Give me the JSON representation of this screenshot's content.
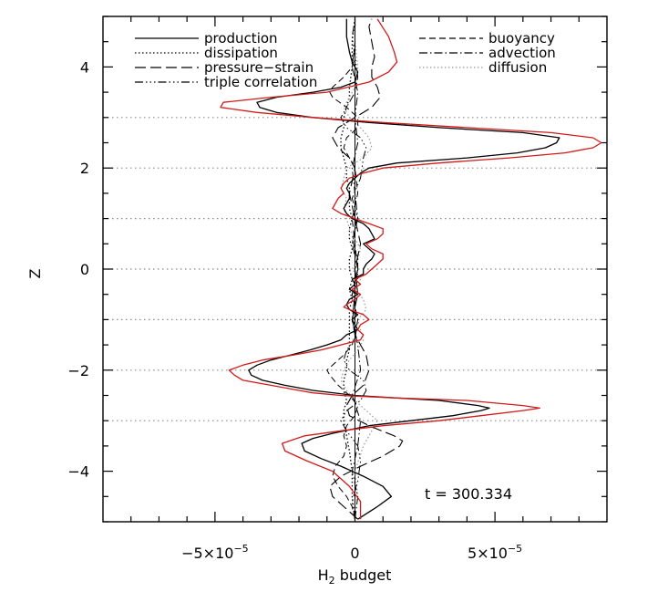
{
  "chart_data": {
    "type": "line",
    "xlabel_main": "H",
    "xlabel_sub": "2",
    "xlabel_rest": " budget",
    "ylabel": "Z",
    "xlim": [
      -9e-05,
      9e-05
    ],
    "ylim": [
      -5,
      5
    ],
    "xticks": [
      {
        "value": -5e-05,
        "mant": "−5×10",
        "exp": "−5"
      },
      {
        "value": 0,
        "mant": "0",
        "exp": ""
      },
      {
        "value": 5e-05,
        "mant": "5×10",
        "exp": "−5"
      }
    ],
    "yticks": [
      {
        "value": -4,
        "label": "−4"
      },
      {
        "value": -2,
        "label": "−2"
      },
      {
        "value": 0,
        "label": "0"
      },
      {
        "value": 2,
        "label": "2"
      },
      {
        "value": 4,
        "label": "4"
      }
    ],
    "hlines": [
      -3,
      -2,
      -1,
      0,
      1,
      2,
      3
    ],
    "annotation": "t  =  300.334",
    "legend": [
      {
        "name": "production",
        "dash": "",
        "color": "#000000"
      },
      {
        "name": "dissipation",
        "dash": "1.5,2.5",
        "color": "#000000"
      },
      {
        "name": "pressure−strain",
        "dash": "12,5",
        "color": "#000000"
      },
      {
        "name": "triple correlation",
        "dash": "9,3,1.5,3,1.5,3,1.5,3",
        "color": "#000000"
      },
      {
        "name": "buoyancy",
        "dash": "7,4",
        "color": "#000000"
      },
      {
        "name": "advection",
        "dash": "9,3,1.5,3",
        "color": "#000000"
      },
      {
        "name": "diffusion",
        "dash": "1.5,2.5",
        "color": "#999999"
      }
    ],
    "series": [
      {
        "key": "total",
        "color": "#d11a1a",
        "dash": "",
        "width": 1.3,
        "z": [
          -4.95,
          -4.6,
          -4.3,
          -4.0,
          -3.8,
          -3.6,
          -3.45,
          -3.3,
          -3.2,
          -3.1,
          -3.0,
          -2.9,
          -2.8,
          -2.75,
          -2.7,
          -2.6,
          -2.55,
          -2.5,
          -2.45,
          -2.4,
          -2.3,
          -2.2,
          -2.1,
          -2.0,
          -1.9,
          -1.8,
          -1.7,
          -1.6,
          -1.5,
          -1.4,
          -1.3,
          -1.2,
          -1.1,
          -1.0,
          -0.9,
          -0.8,
          -0.75,
          -0.7,
          -0.6,
          -0.5,
          -0.4,
          -0.3,
          -0.2,
          -0.1,
          0.0,
          0.1,
          0.2,
          0.3,
          0.4,
          0.5,
          0.6,
          0.7,
          0.8,
          0.9,
          1.0,
          1.1,
          1.2,
          1.3,
          1.4,
          1.5,
          1.6,
          1.7,
          1.8,
          1.9,
          2.0,
          2.1,
          2.2,
          2.3,
          2.4,
          2.5,
          2.6,
          2.7,
          2.8,
          2.9,
          3.0,
          3.1,
          3.2,
          3.3,
          3.4,
          3.5,
          3.7,
          3.9,
          4.1,
          4.3,
          4.6,
          4.95
        ],
        "v": [
          2e-06,
          2e-06,
          -2e-06,
          -8e-06,
          -1.7e-05,
          -2.5e-05,
          -2.6e-05,
          -1.8e-05,
          -5e-06,
          1e-05,
          3e-05,
          4.5e-05,
          6e-05,
          6.6e-05,
          6e-05,
          4e-05,
          1.5e-05,
          -5e-06,
          -1.5e-05,
          -2e-05,
          -3e-05,
          -4e-05,
          -4.3e-05,
          -4.5e-05,
          -4e-05,
          -3.3e-05,
          -2.2e-05,
          -1.2e-05,
          -5e-06,
          2e-06,
          3e-06,
          1e-06,
          2e-06,
          5e-06,
          3e-06,
          -2e-06,
          -4e-06,
          -3e-06,
          0.0,
          2e-06,
          -1e-06,
          2e-06,
          0.0,
          4e-06,
          6e-06,
          8e-06,
          1e-05,
          1e-05,
          6e-06,
          4e-06,
          8e-06,
          1e-05,
          1e-05,
          5e-06,
          0.0,
          -5e-06,
          -8e-06,
          -7e-06,
          -6e-06,
          -4e-06,
          -5e-06,
          -4e-06,
          -2e-06,
          3e-06,
          1e-05,
          3e-05,
          5.5e-05,
          7.5e-05,
          8.5e-05,
          8.8e-05,
          8.5e-05,
          7e-05,
          4e-05,
          1e-05,
          -1.5e-05,
          -3.5e-05,
          -4.8e-05,
          -4.7e-05,
          -3e-05,
          -1e-05,
          5e-06,
          1.2e-05,
          1.5e-05,
          1.4e-05,
          1.2e-05,
          8e-06
        ]
      },
      {
        "key": "production",
        "color": "#000000",
        "dash": "",
        "width": 1.3,
        "z": [
          -4.95,
          -4.7,
          -4.5,
          -4.3,
          -4.1,
          -3.9,
          -3.75,
          -3.6,
          -3.45,
          -3.35,
          -3.25,
          -3.1,
          -3.0,
          -2.9,
          -2.8,
          -2.75,
          -2.7,
          -2.6,
          -2.55,
          -2.5,
          -2.4,
          -2.3,
          -2.2,
          -2.1,
          -2.0,
          -1.9,
          -1.8,
          -1.7,
          -1.6,
          -1.5,
          -1.4,
          -1.3,
          -1.2,
          -1.1,
          -1.0,
          -0.9,
          -0.8,
          -0.7,
          -0.6,
          -0.5,
          -0.4,
          -0.3,
          -0.2,
          -0.1,
          0.0,
          0.1,
          0.2,
          0.3,
          0.4,
          0.5,
          0.6,
          0.7,
          0.8,
          0.9,
          1.0,
          1.1,
          1.2,
          1.3,
          1.4,
          1.5,
          1.6,
          1.7,
          1.8,
          1.9,
          2.0,
          2.1,
          2.2,
          2.3,
          2.4,
          2.5,
          2.6,
          2.7,
          2.8,
          2.9,
          3.0,
          3.1,
          3.2,
          3.3,
          3.4,
          3.5,
          3.6,
          3.7,
          3.9,
          4.1,
          4.3,
          4.6,
          4.95
        ],
        "v": [
          1e-06,
          8e-06,
          1.3e-05,
          1e-05,
          3e-06,
          -5e-06,
          -1.2e-05,
          -1.8e-05,
          -1.9e-05,
          -1.5e-05,
          -8e-06,
          5e-06,
          2e-05,
          3.5e-05,
          4.5e-05,
          4.8e-05,
          4.4e-05,
          3e-05,
          1.5e-05,
          0.0,
          -1.5e-05,
          -2.5e-05,
          -3.3e-05,
          -3.7e-05,
          -3.8e-05,
          -3.5e-05,
          -3e-05,
          -2.3e-05,
          -1.6e-05,
          -1e-05,
          -5e-06,
          -3e-06,
          1e-06,
          0.0,
          -1e-06,
          1e-06,
          -2e-06,
          -3e-06,
          -2e-06,
          1e-06,
          -2e-06,
          0.0,
          -1e-06,
          3e-06,
          3e-06,
          4e-06,
          6e-06,
          7e-06,
          5e-06,
          3e-06,
          7e-06,
          6e-06,
          5e-06,
          3e-06,
          -1e-06,
          -3e-06,
          -4e-06,
          -3e-06,
          -2e-06,
          -2e-06,
          -3e-06,
          -2e-06,
          0.0,
          2e-06,
          5e-06,
          1.5e-05,
          4e-05,
          5.8e-05,
          6.8e-05,
          7.2e-05,
          7.3e-05,
          6e-05,
          3e-05,
          5e-06,
          -1.5e-05,
          -2.8e-05,
          -3.4e-05,
          -3.5e-05,
          -2.8e-05,
          -1.5e-05,
          -5e-06,
          0.0,
          1e-06,
          -1e-06,
          -2e-06,
          -3e-06,
          -3e-06
        ]
      },
      {
        "key": "pressure-strain",
        "color": "#000000",
        "dash": "12,5",
        "width": 1.1,
        "z": [
          -4.95,
          -4.7,
          -4.5,
          -4.3,
          -4.1,
          -3.9,
          -3.7,
          -3.5,
          -3.4,
          -3.3,
          -3.1,
          -2.9,
          -2.7,
          -2.5,
          -2.3,
          -2.0,
          -1.7,
          -1.5,
          -1.3,
          -1.0,
          -0.5,
          0.0,
          0.5,
          1.0,
          1.5,
          2.0,
          2.2,
          2.4,
          2.6,
          2.8,
          3.0,
          3.2,
          3.4,
          3.6,
          3.8,
          4.0,
          4.2,
          4.5,
          4.8,
          4.95
        ],
        "v": [
          1e-06,
          -4e-06,
          -8e-06,
          -9e-06,
          -5e-06,
          2e-06,
          1e-05,
          1.6e-05,
          1.7e-05,
          1.4e-05,
          5e-06,
          -2e-06,
          -3e-06,
          -1e-06,
          3e-06,
          5e-06,
          4e-06,
          2e-06,
          0.0,
          -1e-06,
          1e-06,
          0.0,
          2e-06,
          0.0,
          -2e-06,
          0.0,
          -2e-06,
          -6e-06,
          -8e-06,
          -6e-06,
          0.0,
          6e-06,
          9e-06,
          8e-06,
          6e-06,
          6e-06,
          7e-06,
          6e-06,
          5e-06,
          6e-06
        ]
      },
      {
        "key": "buoyancy",
        "color": "#000000",
        "dash": "7,4",
        "width": 1.0,
        "z": [
          -4.95,
          -4.7,
          -4.5,
          -4.3,
          -4.1,
          -3.9,
          -3.7,
          -3.5,
          -3.3,
          -3.1,
          -2.9,
          -2.7,
          -2.5,
          -2.3,
          -2.1,
          -2.0,
          -1.9,
          -1.7,
          -1.5,
          -1.3,
          -1.0,
          -0.5,
          0.0,
          0.5,
          1.0,
          1.5,
          2.0,
          2.2,
          2.4,
          2.6,
          2.8,
          3.0,
          3.2,
          3.4,
          3.5,
          3.6,
          3.8,
          4.0,
          4.2,
          4.5,
          4.8,
          4.95
        ],
        "v": [
          0.0,
          -1e-06,
          -3e-06,
          -6e-06,
          -8e-06,
          -7e-06,
          -4e-06,
          -3e-06,
          -4e-06,
          -3e-06,
          0.0,
          1e-06,
          -2e-06,
          -6e-06,
          -9e-06,
          -1e-05,
          -8e-06,
          -4e-06,
          -1e-06,
          0.0,
          1e-06,
          -1e-06,
          1e-06,
          0.0,
          -1e-06,
          1e-06,
          0.0,
          -2e-06,
          -4e-06,
          -3e-06,
          1e-06,
          1e-06,
          -3e-06,
          -8e-06,
          -9e-06,
          -8e-06,
          -4e-06,
          -1e-06,
          0.0,
          0.0,
          0.0,
          0.0
        ]
      },
      {
        "key": "advection",
        "color": "#000000",
        "dash": "9,3,1.5,3",
        "width": 1.0,
        "z": [
          -4.95,
          -4.5,
          -4.0,
          -3.5,
          -3.0,
          -2.5,
          -2.0,
          -1.5,
          -1.0,
          -0.5,
          0.0,
          0.5,
          1.0,
          1.5,
          2.0,
          2.5,
          3.0,
          3.5,
          4.0,
          4.5,
          4.95
        ],
        "v": [
          0.0,
          1e-06,
          -1e-06,
          1e-06,
          2e-06,
          -1e-06,
          2e-06,
          1e-06,
          -1e-06,
          0.0,
          1e-06,
          -1e-06,
          1e-06,
          0.0,
          -1e-06,
          1e-06,
          0.0,
          1e-06,
          -1e-06,
          0.0,
          0.0
        ]
      },
      {
        "key": "triple",
        "color": "#000000",
        "dash": "9,3,1.5,3,1.5,3,1.5,3",
        "width": 1.0,
        "z": [
          -4.95,
          -4.6,
          -4.2,
          -3.8,
          -3.5,
          -3.2,
          -3.0,
          -2.8,
          -2.6,
          -2.4,
          -2.2,
          -2.0,
          -1.8,
          -1.6,
          -1.4,
          -1.0,
          -0.6,
          -0.2,
          0.2,
          0.6,
          1.0,
          1.4,
          1.8,
          2.2,
          2.4,
          2.6,
          2.8,
          3.0,
          3.2,
          3.5,
          3.8,
          4.2,
          4.6,
          4.95
        ],
        "v": [
          0.0,
          -1e-06,
          1e-06,
          2e-06,
          1e-06,
          -3e-06,
          -5e-06,
          -3e-06,
          2e-06,
          4e-06,
          3e-06,
          -2e-06,
          -4e-06,
          -3e-06,
          0.0,
          1e-06,
          -1e-06,
          1e-06,
          1e-06,
          -1e-06,
          1e-06,
          -1e-06,
          2e-06,
          3e-06,
          4e-06,
          2e-06,
          -3e-06,
          -5e-06,
          -3e-06,
          0.0,
          1e-06,
          0.0,
          -1e-06,
          0.0
        ]
      },
      {
        "key": "dissipation",
        "color": "#000000",
        "dash": "1.5,2.5",
        "width": 1.3,
        "z": [
          -4.95,
          -4.5,
          -4.0,
          -3.6,
          -3.3,
          -3.0,
          -2.8,
          -2.6,
          -2.4,
          -2.2,
          -2.0,
          -1.8,
          -1.6,
          -1.4,
          -1.2,
          -1.0,
          -0.8,
          -0.6,
          -0.4,
          -0.2,
          0.0,
          0.2,
          0.4,
          0.6,
          0.8,
          1.0,
          1.2,
          1.4,
          1.6,
          1.8,
          2.0,
          2.2,
          2.4,
          2.6,
          2.8,
          3.0,
          3.2,
          3.4,
          3.6,
          4.0,
          4.5,
          4.95
        ],
        "v": [
          0.0,
          -1e-06,
          -1e-06,
          -2e-06,
          -3e-06,
          -4e-06,
          -4e-06,
          -3e-06,
          -4e-06,
          -4e-06,
          -3e-06,
          -3e-06,
          -2e-06,
          -2e-06,
          -2e-06,
          -2e-06,
          -2e-06,
          -1e-06,
          -2e-06,
          -1e-06,
          -2e-06,
          -2e-06,
          -1e-06,
          -2e-06,
          -2e-06,
          -1e-06,
          -2e-06,
          -2e-06,
          -2e-06,
          -3e-06,
          -3e-06,
          -4e-06,
          -5e-06,
          -5e-06,
          -4e-06,
          -4e-06,
          -3e-06,
          -2e-06,
          -2e-06,
          -1e-06,
          -1e-06,
          0.0
        ]
      },
      {
        "key": "diffusion",
        "color": "#999999",
        "dash": "1.5,2.5",
        "width": 1.2,
        "z": [
          -4.95,
          -4.5,
          -4.0,
          -3.5,
          -3.2,
          -3.0,
          -2.8,
          -2.6,
          -2.4,
          -2.2,
          -2.0,
          -1.8,
          -1.6,
          -1.4,
          -1.2,
          -1.0,
          -0.8,
          -0.6,
          -0.4,
          -0.2,
          0.0,
          0.2,
          0.4,
          0.6,
          0.8,
          1.0,
          1.2,
          1.4,
          1.6,
          1.8,
          2.0,
          2.2,
          2.4,
          2.6,
          2.8,
          3.0,
          3.2,
          3.4,
          3.6,
          4.0,
          4.5,
          4.95
        ],
        "v": [
          0.0,
          1e-06,
          0.0,
          3e-06,
          6e-06,
          8e-06,
          4e-06,
          0.0,
          -3e-06,
          -5e-06,
          -4e-06,
          -2e-06,
          1e-06,
          3e-06,
          2e-06,
          1e-06,
          4e-06,
          3e-06,
          0.0,
          2e-06,
          -1e-06,
          1e-06,
          2e-06,
          0.0,
          -2e-06,
          -3e-06,
          -4e-06,
          -3e-06,
          -5e-06,
          -4e-06,
          -3e-06,
          3e-06,
          6e-06,
          5e-06,
          2e-06,
          -2e-06,
          -4e-06,
          -2e-06,
          0.0,
          1e-06,
          0.0,
          0.0
        ]
      }
    ]
  }
}
